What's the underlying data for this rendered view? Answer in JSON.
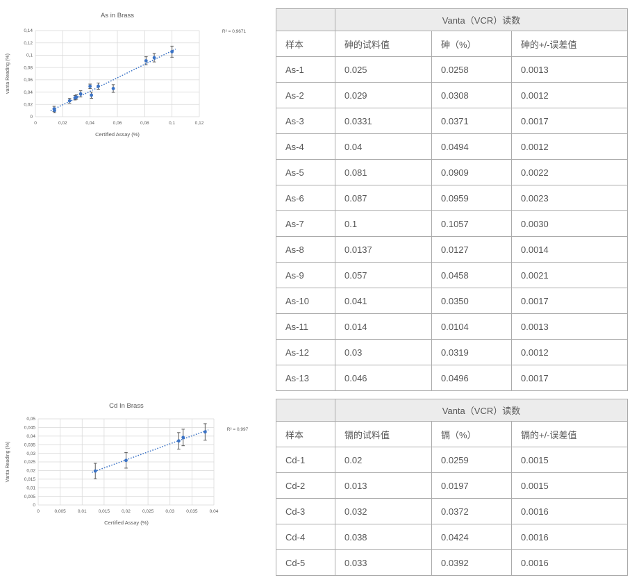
{
  "accent_color": "#3B73C6",
  "grid_color": "#d9d9d9",
  "error_bar_color": "#595959",
  "table_header_bg": "#ececec",
  "chart_data": [
    {
      "type": "scatter",
      "title": "As in Brass",
      "xlabel": "Certified Assay (%)",
      "ylabel": "vanta Reading (%)",
      "r2_label": "R² = 0,9671",
      "xlim": [
        0,
        0.12
      ],
      "xstep": 0.02,
      "ylim": [
        0,
        0.14
      ],
      "ystep": 0.02,
      "decimal_separator": ",",
      "grid": true,
      "trendline": "linear-dotted",
      "error_bar_scale": 3,
      "marker_color": "#3B73C6",
      "points": [
        {
          "x": 0.025,
          "y": 0.0258,
          "err": 0.0013
        },
        {
          "x": 0.029,
          "y": 0.0308,
          "err": 0.0012
        },
        {
          "x": 0.0331,
          "y": 0.0371,
          "err": 0.0017
        },
        {
          "x": 0.04,
          "y": 0.0494,
          "err": 0.0012
        },
        {
          "x": 0.081,
          "y": 0.0909,
          "err": 0.0022
        },
        {
          "x": 0.087,
          "y": 0.0959,
          "err": 0.0023
        },
        {
          "x": 0.1,
          "y": 0.1057,
          "err": 0.003
        },
        {
          "x": 0.0137,
          "y": 0.0127,
          "err": 0.0014
        },
        {
          "x": 0.057,
          "y": 0.0458,
          "err": 0.0021
        },
        {
          "x": 0.041,
          "y": 0.035,
          "err": 0.0017
        },
        {
          "x": 0.014,
          "y": 0.0104,
          "err": 0.0013
        },
        {
          "x": 0.03,
          "y": 0.0319,
          "err": 0.0012
        },
        {
          "x": 0.046,
          "y": 0.0496,
          "err": 0.0017
        }
      ]
    },
    {
      "type": "scatter",
      "title": "Cd In Brass",
      "xlabel": "Certified Assay (%)",
      "ylabel": "Vanta Reading (%)",
      "r2_label": "R² = 0,997",
      "xlim": [
        0,
        0.04
      ],
      "xstep": 0.005,
      "ylim": [
        0,
        0.05
      ],
      "ystep": 0.005,
      "decimal_separator": ",",
      "grid": true,
      "trendline": "linear-dotted",
      "error_bar_scale": 3,
      "marker_color": "#3B73C6",
      "points": [
        {
          "x": 0.02,
          "y": 0.0259,
          "err": 0.0015
        },
        {
          "x": 0.013,
          "y": 0.0197,
          "err": 0.0015
        },
        {
          "x": 0.032,
          "y": 0.0372,
          "err": 0.0016
        },
        {
          "x": 0.038,
          "y": 0.0424,
          "err": 0.0016
        },
        {
          "x": 0.033,
          "y": 0.0392,
          "err": 0.0016
        }
      ]
    }
  ],
  "tables": [
    {
      "span_header": "Vanta（VCR）读数",
      "columns": [
        "样本",
        "砷的试料值",
        "砷（%）",
        "砷的+/-误差值"
      ],
      "rows": [
        [
          "As-1",
          "0.025",
          "0.0258",
          "0.0013"
        ],
        [
          "As-2",
          "0.029",
          "0.0308",
          "0.0012"
        ],
        [
          "As-3",
          "0.0331",
          "0.0371",
          "0.0017"
        ],
        [
          "As-4",
          "0.04",
          "0.0494",
          "0.0012"
        ],
        [
          "As-5",
          "0.081",
          "0.0909",
          "0.0022"
        ],
        [
          "As-6",
          "0.087",
          "0.0959",
          "0.0023"
        ],
        [
          "As-7",
          "0.1",
          "0.1057",
          "0.0030"
        ],
        [
          "As-8",
          "0.0137",
          "0.0127",
          "0.0014"
        ],
        [
          "As-9",
          "0.057",
          "0.0458",
          "0.0021"
        ],
        [
          "As-10",
          "0.041",
          "0.0350",
          "0.0017"
        ],
        [
          "As-11",
          "0.014",
          "0.0104",
          "0.0013"
        ],
        [
          "As-12",
          "0.03",
          "0.0319",
          "0.0012"
        ],
        [
          "As-13",
          "0.046",
          "0.0496",
          "0.0017"
        ]
      ]
    },
    {
      "span_header": "Vanta（VCR）读数",
      "columns": [
        "样本",
        "镉的试料值",
        "镉（%）",
        "镉的+/-误差值"
      ],
      "rows": [
        [
          "Cd-1",
          "0.02",
          "0.0259",
          "0.0015"
        ],
        [
          "Cd-2",
          "0.013",
          "0.0197",
          "0.0015"
        ],
        [
          "Cd-3",
          "0.032",
          "0.0372",
          "0.0016"
        ],
        [
          "Cd-4",
          "0.038",
          "0.0424",
          "0.0016"
        ],
        [
          "Cd-5",
          "0.033",
          "0.0392",
          "0.0016"
        ]
      ]
    }
  ]
}
